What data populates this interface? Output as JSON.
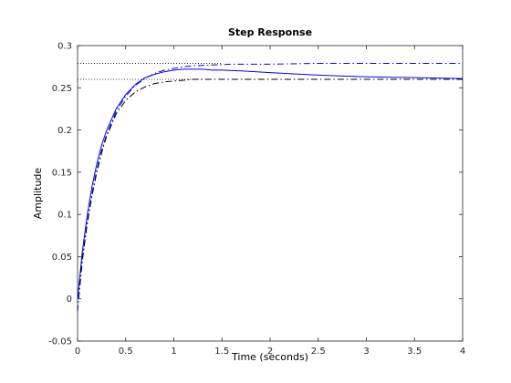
{
  "chart_data": {
    "type": "line",
    "title": "Step Response",
    "xlabel": "Time (seconds)",
    "ylabel": "Amplitude",
    "xlim": [
      0,
      4
    ],
    "ylim": [
      -0.05,
      0.3
    ],
    "xticks": [
      0,
      0.5,
      1,
      1.5,
      2,
      2.5,
      3,
      3.5,
      4
    ],
    "xtick_labels": [
      "0",
      "0.5",
      "1",
      "1.5",
      "2",
      "2.5",
      "3",
      "3.5",
      "4"
    ],
    "yticks": [
      -0.05,
      0,
      0.05,
      0.1,
      0.15,
      0.2,
      0.25,
      0.3
    ],
    "ytick_labels": [
      "-0.05",
      "0",
      "0.05",
      "0.1",
      "0.15",
      "0.2",
      "0.25",
      "0.3"
    ],
    "grid": false,
    "series": [
      {
        "style": "solid",
        "color": "#0000ff",
        "x": [
          0,
          0.05,
          0.1,
          0.15,
          0.2,
          0.25,
          0.3,
          0.4,
          0.5,
          0.6,
          0.7,
          0.8,
          0.9,
          1.0,
          1.1,
          1.2,
          1.3,
          1.4,
          1.5,
          1.7,
          2.0,
          2.5,
          3.0,
          3.5,
          4.0
        ],
        "y": [
          0,
          0.056,
          0.099,
          0.133,
          0.16,
          0.182,
          0.199,
          0.225,
          0.242,
          0.254,
          0.262,
          0.266,
          0.269,
          0.271,
          0.272,
          0.272,
          0.272,
          0.271,
          0.271,
          0.27,
          0.268,
          0.265,
          0.263,
          0.262,
          0.261
        ]
      },
      {
        "style": "dashdot",
        "color": "#0000ff",
        "x": [
          0,
          0.05,
          0.1,
          0.15,
          0.2,
          0.25,
          0.3,
          0.4,
          0.5,
          0.6,
          0.7,
          0.8,
          0.9,
          1.0,
          1.1,
          1.2,
          1.4,
          1.6,
          1.8,
          2.0,
          2.5,
          3.0,
          3.5,
          4.0
        ],
        "y": [
          -0.015,
          0.045,
          0.09,
          0.125,
          0.153,
          0.176,
          0.194,
          0.222,
          0.24,
          0.253,
          0.261,
          0.267,
          0.271,
          0.273,
          0.275,
          0.276,
          0.277,
          0.278,
          0.278,
          0.278,
          0.279,
          0.279,
          0.279,
          0.279
        ]
      },
      {
        "style": "dashdot",
        "color": "#000000",
        "x": [
          0,
          0.05,
          0.1,
          0.15,
          0.2,
          0.25,
          0.3,
          0.4,
          0.5,
          0.6,
          0.7,
          0.8,
          0.9,
          1.0,
          1.1,
          1.2,
          1.4,
          1.6,
          2.0,
          2.5,
          3.0,
          3.5,
          4.0
        ],
        "y": [
          0,
          0.048,
          0.088,
          0.122,
          0.15,
          0.173,
          0.192,
          0.219,
          0.235,
          0.245,
          0.251,
          0.255,
          0.257,
          0.258,
          0.259,
          0.26,
          0.26,
          0.26,
          0.26,
          0.26,
          0.26,
          0.26,
          0.26
        ]
      }
    ],
    "reference_lines": [
      {
        "style": "dotted",
        "color": "#000000",
        "y": 0.279,
        "x": [
          0,
          1.5
        ]
      },
      {
        "style": "dotted",
        "color": "#000000",
        "y": 0.26,
        "x": [
          0,
          1.3
        ]
      }
    ]
  }
}
